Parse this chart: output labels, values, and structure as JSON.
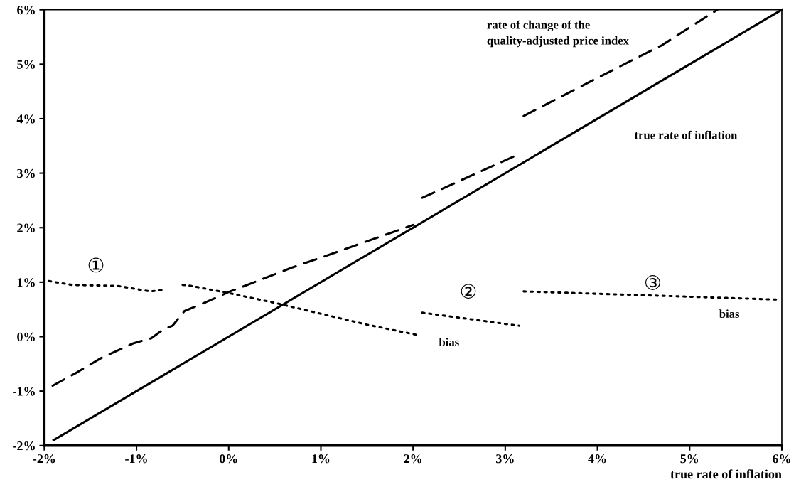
{
  "chart_data": {
    "type": "line",
    "xlabel": "true rate of inflation",
    "xlim": [
      -2,
      6
    ],
    "ylim": [
      -2,
      6
    ],
    "xticks": [
      {
        "value": -2,
        "label": "-2%"
      },
      {
        "value": -1,
        "label": "-1%"
      },
      {
        "value": 0,
        "label": "0%"
      },
      {
        "value": 1,
        "label": "1%"
      },
      {
        "value": 2,
        "label": "2%"
      },
      {
        "value": 3,
        "label": "3%"
      },
      {
        "value": 4,
        "label": "4%"
      },
      {
        "value": 5,
        "label": "5%"
      },
      {
        "value": 6,
        "label": "6%"
      }
    ],
    "yticks": [
      {
        "value": -2,
        "label": "-2%"
      },
      {
        "value": -1,
        "label": "-1%"
      },
      {
        "value": 0,
        "label": "0%"
      },
      {
        "value": 1,
        "label": "1%"
      },
      {
        "value": 2,
        "label": "2%"
      },
      {
        "value": 3,
        "label": "3%"
      },
      {
        "value": 4,
        "label": "4%"
      },
      {
        "value": 5,
        "label": "5%"
      },
      {
        "value": 6,
        "label": "6%"
      }
    ],
    "grid": false,
    "legend": false,
    "marker": "none",
    "series": [
      {
        "color": "#000000",
        "line_style": "solid",
        "x": [
          -1.9,
          6
        ],
        "values": [
          -1.9,
          6
        ]
      },
      {
        "color": "#000000",
        "line_style": "dashed",
        "x": [
          -1.91,
          -1.66,
          -1.38,
          -1.03,
          -0.84,
          -0.71,
          -0.61,
          -0.48,
          -0.25,
          0,
          0.31,
          0.69,
          1.0,
          1.5,
          2.0,
          2.05,
          2.1,
          3.15,
          3.18,
          3.2,
          4.0,
          4.7,
          5.3
        ],
        "values": [
          -0.9,
          -0.67,
          -0.39,
          -0.12,
          -0.03,
          0.13,
          0.2,
          0.47,
          0.63,
          0.82,
          1.02,
          1.27,
          1.45,
          1.75,
          2.05,
          null,
          2.55,
          3.35,
          null,
          4.05,
          4.75,
          5.35,
          6.0
        ]
      },
      {
        "color": "#000000",
        "line_style": "dotted",
        "x": [
          -1.95,
          -1.7,
          -1.2,
          -0.85,
          -0.7,
          -0.6,
          -0.5,
          -0.4,
          -0.25,
          0,
          0.5,
          1.0,
          1.5,
          2.05,
          2.08,
          2.1,
          3.15,
          3.18,
          3.2,
          4.5,
          5.95
        ],
        "values": [
          1.02,
          0.95,
          0.93,
          0.83,
          0.86,
          null,
          0.95,
          0.93,
          0.88,
          0.8,
          0.62,
          0.42,
          0.22,
          0.03,
          null,
          0.44,
          0.2,
          null,
          0.83,
          0.76,
          0.68
        ]
      }
    ],
    "annotations": [
      "rate of change of the\nquality-adjusted price index",
      "true rate of inflation",
      "bias",
      "bias",
      "①",
      "②",
      "③"
    ]
  }
}
